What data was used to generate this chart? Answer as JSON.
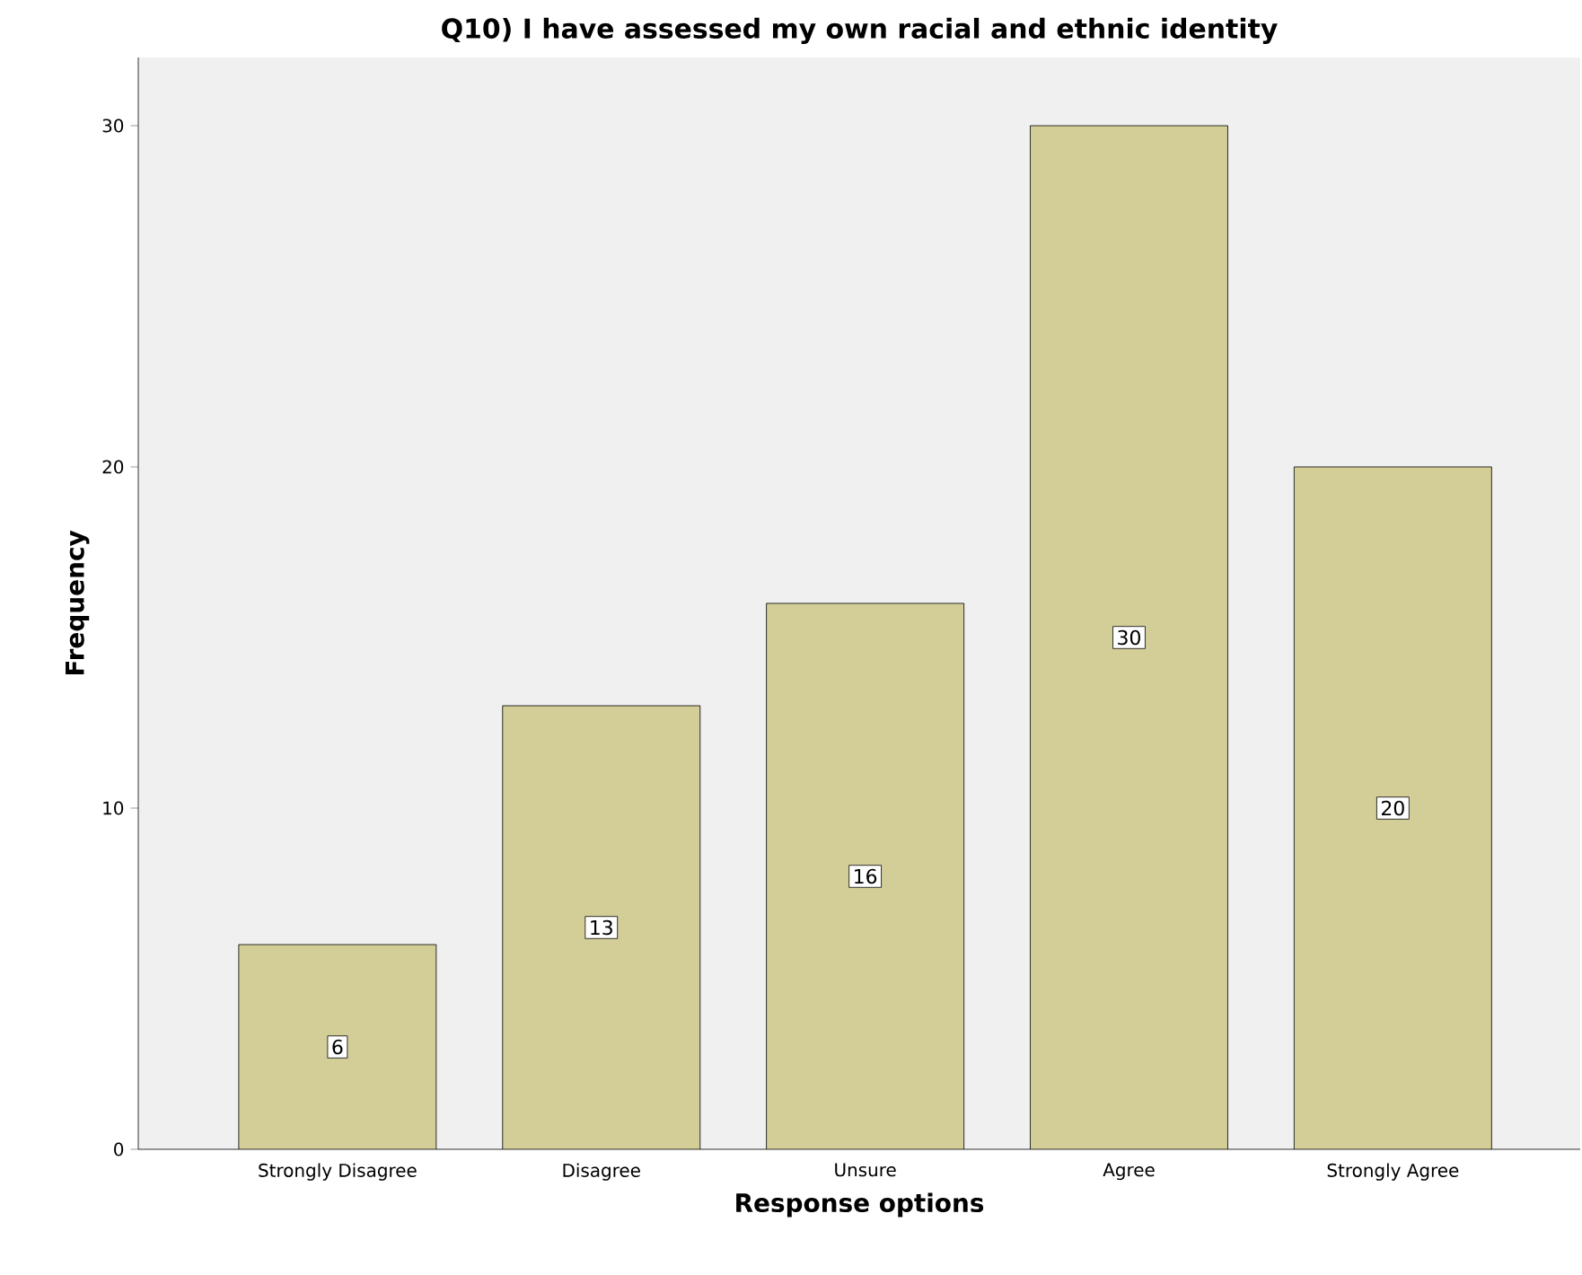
{
  "chart_data": {
    "type": "bar",
    "title": "Q10) I have assessed my own racial and ethnic identity",
    "xlabel": "Response options",
    "ylabel": "Frequency",
    "categories": [
      "Strongly Disagree",
      "Disagree",
      "Unsure",
      "Agree",
      "Strongly Agree"
    ],
    "values": [
      6,
      13,
      16,
      30,
      20
    ],
    "color": "#d3cd98",
    "ylim": [
      0,
      32
    ],
    "yticks": [
      0,
      10,
      20,
      30
    ],
    "data_labels": true
  }
}
